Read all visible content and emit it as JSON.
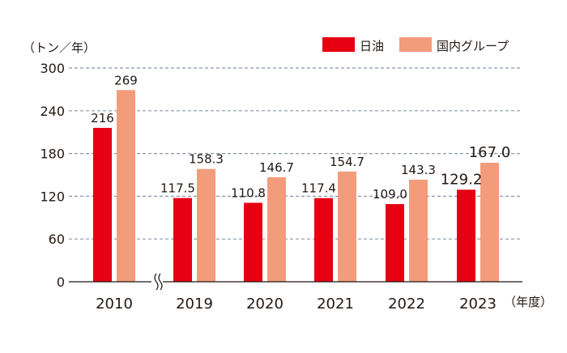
{
  "chart_data": {
    "type": "bar",
    "title": "",
    "ylabel": "（トン／年）",
    "xlabel": "（年度）",
    "ylim": [
      0,
      300
    ],
    "yticks": [
      "0",
      "60",
      "120",
      "180",
      "240",
      "300"
    ],
    "grid": true,
    "legend_position": "top-right",
    "axis_break_after": "2010",
    "categories": [
      "2010",
      "2019",
      "2020",
      "2021",
      "2022",
      "2023"
    ],
    "series": [
      {
        "name": "日油",
        "color": "#e60012",
        "values": [
          216,
          117.5,
          110.8,
          117.4,
          109.0,
          129.2
        ],
        "labels": [
          "216",
          "117.5",
          "110.8",
          "117.4",
          "109.0",
          "129.2"
        ]
      },
      {
        "name": "国内グループ",
        "color": "#f39c7b",
        "values": [
          269,
          158.3,
          146.7,
          154.7,
          143.3,
          167.0
        ],
        "labels": [
          "269",
          "158.3",
          "146.7",
          "154.7",
          "143.3",
          "167.0"
        ]
      }
    ]
  }
}
